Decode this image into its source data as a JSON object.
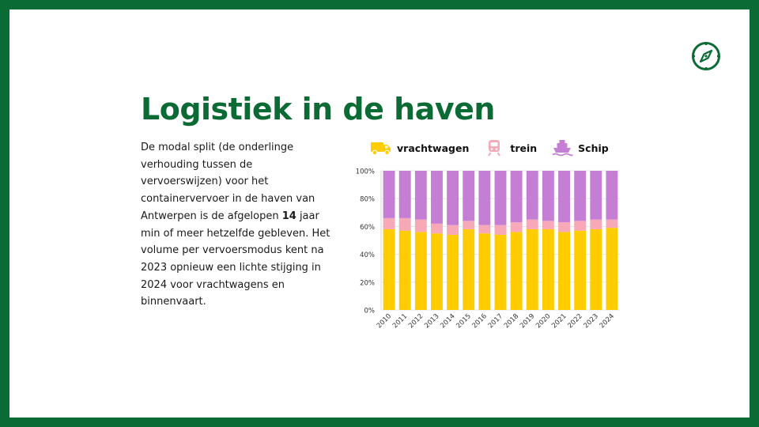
{
  "slide": {
    "title": "Logistiek in de haven",
    "body": {
      "before": "De modal split (de onderlinge verhouding tussen de vervoerswijzen) voor het containervervoer in de haven van Antwerpen is de afgelopen ",
      "bold": "14",
      "after": " jaar min of meer hetzelfde gebleven. Het volume per vervoersmodus kent na 2023 opnieuw een lichte stijging in 2024 voor vrachtwagens en binnenvaart."
    },
    "corner_icon": "compass-icon"
  },
  "legend": [
    {
      "label": "vrachtwagen",
      "icon": "truck-icon",
      "color": "#ffcc00"
    },
    {
      "label": "trein",
      "icon": "train-icon",
      "color": "#f7a9b8"
    },
    {
      "label": "Schip",
      "icon": "ship-icon",
      "color": "#c47fd5"
    }
  ],
  "colors": {
    "brand_green": "#0b6b34",
    "truck": "#ffcc00",
    "train": "#f7a9b8",
    "ship": "#c47fd5"
  },
  "chart_data": {
    "type": "bar",
    "stacked": true,
    "categories": [
      "2010",
      "2011",
      "2012",
      "2013",
      "2014",
      "2015",
      "2016",
      "2017",
      "2018",
      "2019",
      "2020",
      "2021",
      "2022",
      "2023",
      "2024"
    ],
    "series": [
      {
        "name": "vrachtwagen",
        "color": "#ffcc00",
        "values": [
          58,
          57,
          56,
          55,
          54,
          58,
          55,
          54,
          56,
          58,
          58,
          56,
          57,
          58,
          59
        ]
      },
      {
        "name": "trein",
        "color": "#f7a9b8",
        "values": [
          8,
          9,
          9,
          7,
          7,
          6,
          6,
          7,
          7,
          7,
          6,
          7,
          7,
          7,
          6
        ]
      },
      {
        "name": "Schip",
        "color": "#c47fd5",
        "values": [
          34,
          34,
          35,
          38,
          39,
          36,
          39,
          39,
          37,
          35,
          36,
          37,
          36,
          35,
          35
        ]
      }
    ],
    "yticks": [
      "0%",
      "20%",
      "40%",
      "60%",
      "80%",
      "100%"
    ],
    "ylim": [
      0,
      100
    ],
    "grid": true,
    "legend_position": "top"
  }
}
